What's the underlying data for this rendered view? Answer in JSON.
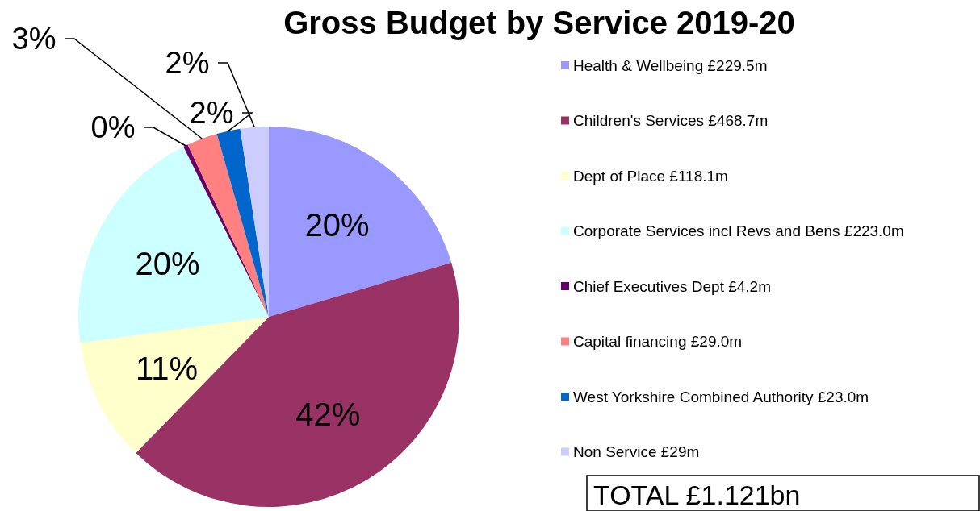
{
  "chart_data": {
    "type": "pie",
    "title": "Gross Budget by Service 2019-20",
    "categories": [
      "Health & Wellbeing £229.5m",
      "Children's Services £468.7m",
      "Dept of Place £118.1m",
      "Corporate Services incl Revs and Bens £223.0m",
      "Chief Executives Dept £4.2m",
      "Capital financing £29.0m",
      "West Yorkshire Combined Authority £23.0m",
      "Non Service £29m"
    ],
    "values": [
      20.4,
      41.9,
      10.5,
      19.8,
      0.4,
      2.6,
      2.0,
      2.4
    ],
    "value_labels": [
      "20%",
      "42%",
      "11%",
      "20%",
      "0%",
      "3%",
      "2%",
      "2%"
    ],
    "colors": [
      "#9999ff",
      "#993366",
      "#ffffcc",
      "#ccffff",
      "#660066",
      "#ff8080",
      "#0066cc",
      "#ccccff"
    ],
    "legend": "right",
    "annotations": [
      "TOTAL £1.121bn"
    ]
  }
}
